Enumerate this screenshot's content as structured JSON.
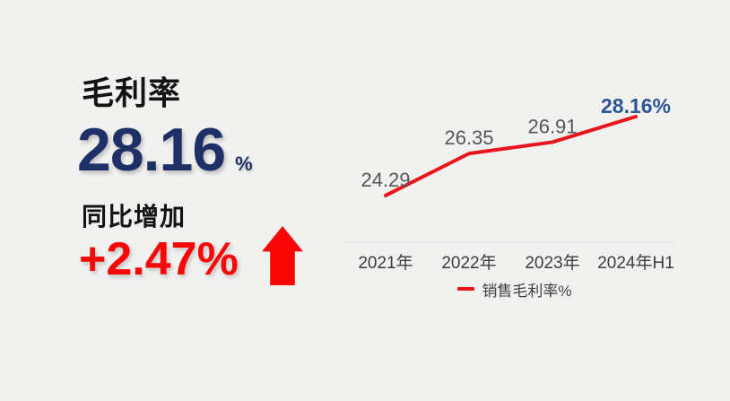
{
  "page": {
    "background_color": "#f1f1f0"
  },
  "kpi": {
    "title": "毛利率",
    "value": "28.16",
    "unit": "%",
    "value_color": "#1d3166",
    "change_label": "同比增加",
    "change_value": "+2.47%",
    "change_color": "#fb0606",
    "arrow_icon": "up-arrow",
    "arrow_color": "#fb0606"
  },
  "chart_data": {
    "type": "line",
    "title": "",
    "categories": [
      "2021年",
      "2022年",
      "2023年",
      "2024年H1"
    ],
    "series": [
      {
        "name": "销售毛利率%",
        "values": [
          24.29,
          26.35,
          26.91,
          28.16
        ]
      }
    ],
    "point_labels": [
      "24.29",
      "26.35",
      "26.91",
      "28.16%"
    ],
    "highlight_index": 3,
    "xlabel": "",
    "ylabel": "",
    "ylim": [
      22,
      30
    ],
    "grid": false,
    "legend_position": "bottom",
    "line_color": "#e9151b",
    "label_color": "#565656",
    "highlight_label_color": "#2d5694",
    "axis_color": "#dcdcdb",
    "tick_color": "#3d3d3d",
    "legend_swatch_color": "#e9151b"
  }
}
